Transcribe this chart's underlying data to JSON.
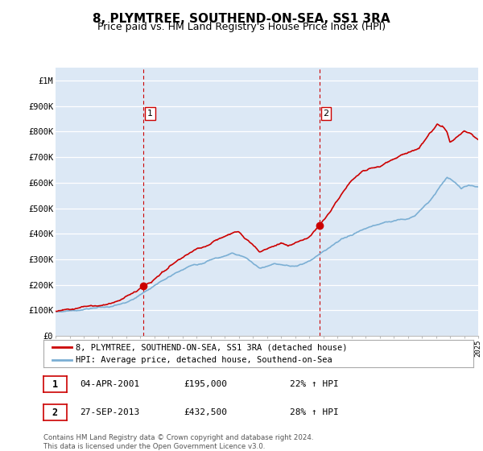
{
  "title": "8, PLYMTREE, SOUTHEND-ON-SEA, SS1 3RA",
  "subtitle": "Price paid vs. HM Land Registry's House Price Index (HPI)",
  "title_fontsize": 11,
  "subtitle_fontsize": 9,
  "background_color": "#ffffff",
  "plot_bg_color": "#dce8f5",
  "grid_color": "#ffffff",
  "line1_color": "#cc0000",
  "line2_color": "#7bafd4",
  "vline_color": "#cc0000",
  "ylim": [
    0,
    1050000
  ],
  "yticks": [
    0,
    100000,
    200000,
    300000,
    400000,
    500000,
    600000,
    700000,
    800000,
    900000,
    1000000
  ],
  "ytick_labels": [
    "£0",
    "£100K",
    "£200K",
    "£300K",
    "£400K",
    "£500K",
    "£600K",
    "£700K",
    "£800K",
    "£900K",
    "£1M"
  ],
  "sale1_date": 2001.25,
  "sale1_price": 195000,
  "sale1_label": "1",
  "sale2_date": 2013.75,
  "sale2_price": 432500,
  "sale2_label": "2",
  "legend_line1": "8, PLYMTREE, SOUTHEND-ON-SEA, SS1 3RA (detached house)",
  "legend_line2": "HPI: Average price, detached house, Southend-on-Sea",
  "table_row1": [
    "1",
    "04-APR-2001",
    "£195,000",
    "22% ↑ HPI"
  ],
  "table_row2": [
    "2",
    "27-SEP-2013",
    "£432,500",
    "28% ↑ HPI"
  ],
  "footer": "Contains HM Land Registry data © Crown copyright and database right 2024.\nThis data is licensed under the Open Government Licence v3.0.",
  "xstart": 1995,
  "xend": 2025
}
